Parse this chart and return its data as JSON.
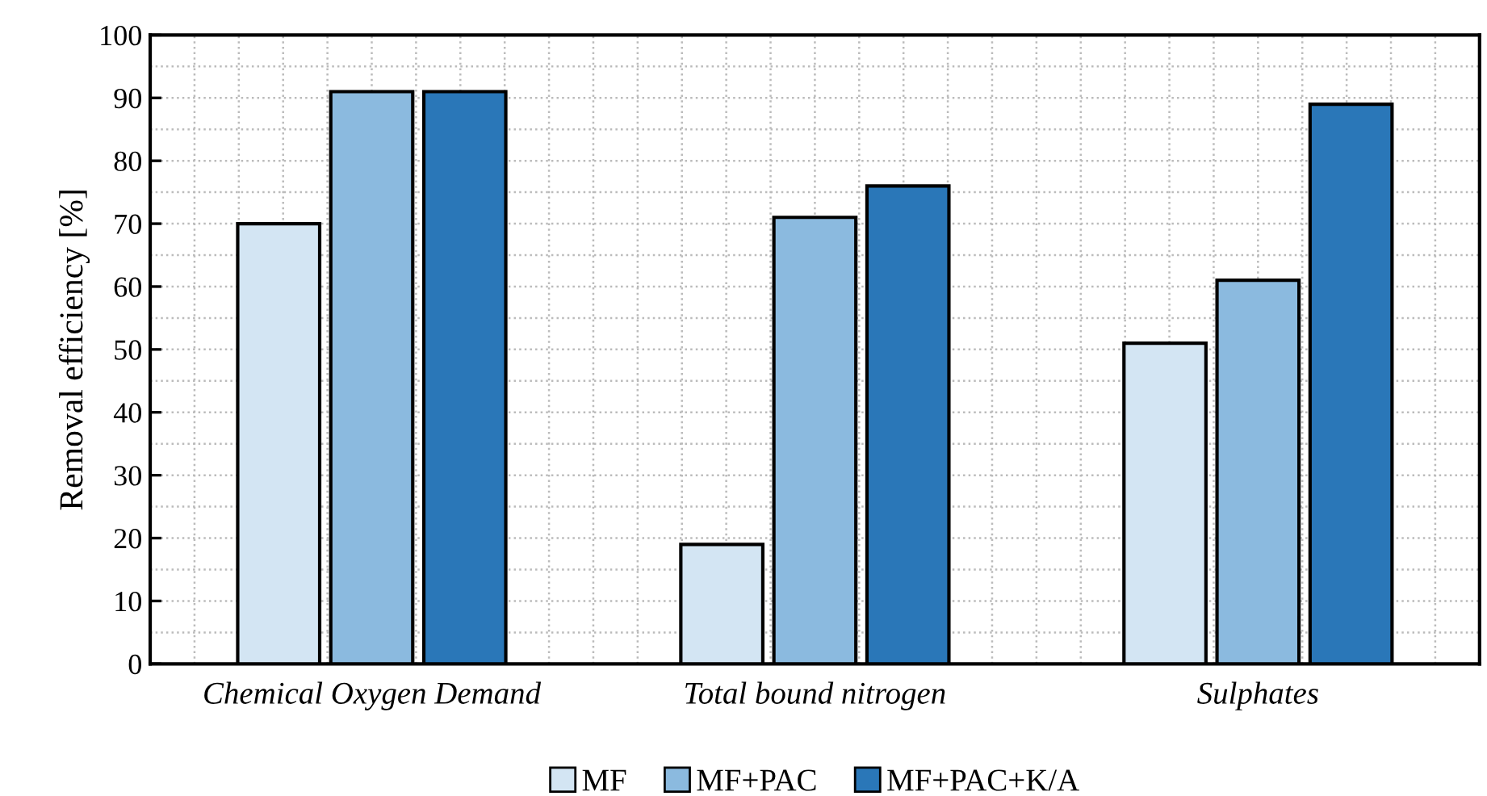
{
  "chart_data": {
    "type": "bar",
    "ylabel": "Removal efficiency [%]",
    "categories": [
      "Chemical Oxygen Demand",
      "Total bound nitrogen",
      "Sulphates"
    ],
    "series": [
      {
        "name": "MF",
        "color": "#d3e5f3",
        "values": [
          70,
          19,
          51
        ]
      },
      {
        "name": "MF+PAC",
        "color": "#8bbadf",
        "values": [
          91,
          71,
          61
        ]
      },
      {
        "name": "MF+PAC+K/A",
        "color": "#2a77b8",
        "values": [
          91,
          76,
          89
        ]
      }
    ],
    "ylim": [
      0,
      100
    ],
    "yticks": [
      0,
      10,
      20,
      30,
      40,
      50,
      60,
      70,
      80,
      90,
      100
    ],
    "grid": true,
    "legend": "bottom"
  }
}
